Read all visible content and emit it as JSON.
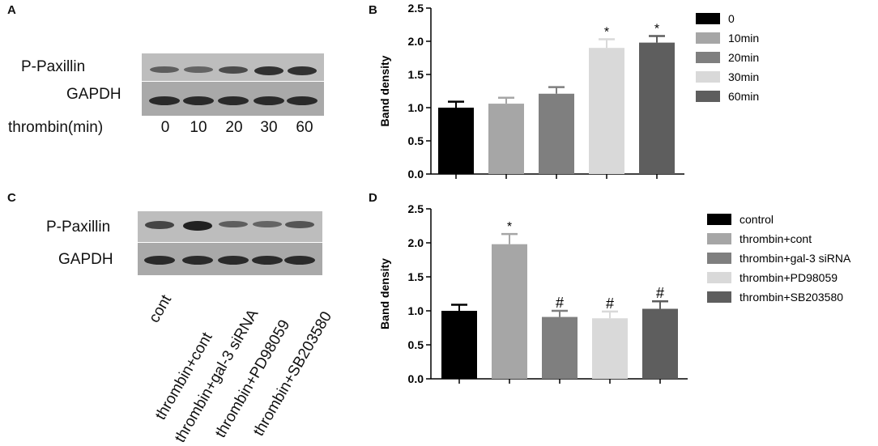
{
  "panels": {
    "a": {
      "letter": "A",
      "labels": {
        "top": "P-Paxillin",
        "bottom": "GAPDH",
        "axis": "thrombin(min)"
      },
      "lanes": [
        "0",
        "10",
        "20",
        "30",
        "60"
      ]
    },
    "c": {
      "letter": "C",
      "labels": {
        "top": "P-Paxillin",
        "bottom": "GAPDH"
      },
      "lanes": [
        "cont",
        "thrombin+cont",
        "thrombin+gal-3 siRNA",
        "thrombin+PD98059",
        "thrombin+SB203580"
      ]
    }
  },
  "chart_data": [
    {
      "panel": "B",
      "type": "bar",
      "ylabel": "Band density",
      "ylim": [
        0,
        2.5
      ],
      "yticks": [
        "0.0",
        "0.5",
        "1.0",
        "1.5",
        "2.0",
        "2.5"
      ],
      "categories": [
        "0",
        "10min",
        "20min",
        "30min",
        "60min"
      ],
      "values": [
        1.0,
        1.06,
        1.21,
        1.9,
        1.98
      ],
      "errors": [
        0.09,
        0.09,
        0.1,
        0.13,
        0.1
      ],
      "annotations": [
        "",
        "",
        "",
        "*",
        "*"
      ],
      "colors": [
        "#000000",
        "#a6a6a6",
        "#7f7f7f",
        "#d9d9d9",
        "#5e5e5e"
      ],
      "legend": [
        "0",
        "10min",
        "20min",
        "30min",
        "60min"
      ],
      "legend_position": "right"
    },
    {
      "panel": "D",
      "type": "bar",
      "ylabel": "Band density",
      "ylim": [
        0,
        2.5
      ],
      "yticks": [
        "0.0",
        "0.5",
        "1.0",
        "1.5",
        "2.0",
        "2.5"
      ],
      "categories": [
        "control",
        "thrombin+cont",
        "thrombin+gal-3 siRNA",
        "thrombin+PD98059",
        "thrombin+SB203580"
      ],
      "values": [
        1.0,
        1.98,
        0.91,
        0.89,
        1.03
      ],
      "errors": [
        0.09,
        0.15,
        0.09,
        0.1,
        0.11
      ],
      "annotations": [
        "",
        "*",
        "#",
        "#",
        "#"
      ],
      "colors": [
        "#000000",
        "#a6a6a6",
        "#7f7f7f",
        "#d9d9d9",
        "#5e5e5e"
      ],
      "legend": [
        "control",
        "thrombin+cont",
        "thrombin+gal-3 siRNA",
        "thrombin+PD98059",
        "thrombin+SB203580"
      ],
      "legend_position": "right"
    }
  ]
}
